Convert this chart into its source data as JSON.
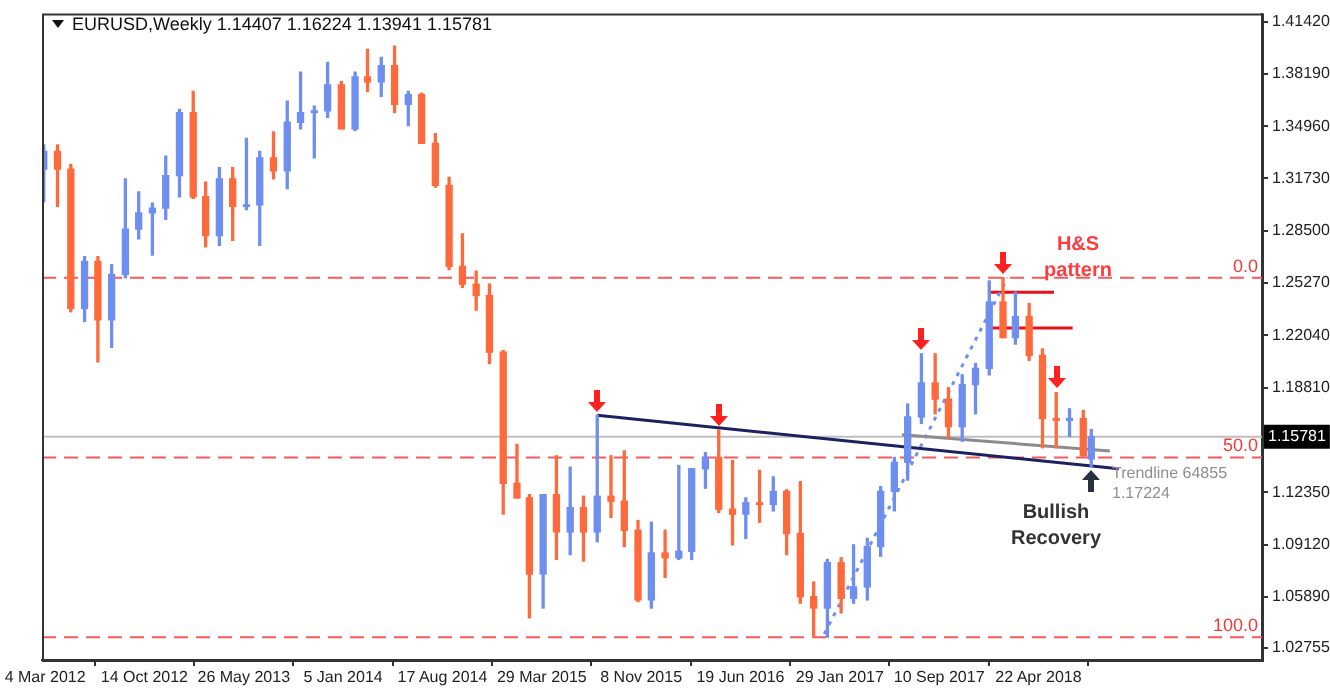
{
  "chart_data": {
    "type": "candlestick",
    "title": "EURUSD,Weekly  1.14407 1.16224 1.13941 1.15781",
    "x": [
      "2012-03-01",
      "2012-04-01",
      "2012-05-01",
      "2012-06-01",
      "2012-07-01",
      "2012-08-01",
      "2012-09-01",
      "2012-10-01",
      "2012-11-01",
      "2012-12-01",
      "2013-01-01",
      "2013-02-01",
      "2013-03-01",
      "2013-04-01",
      "2013-05-01",
      "2013-06-01",
      "2013-07-01",
      "2013-08-01",
      "2013-09-01",
      "2013-10-01",
      "2013-11-01",
      "2013-12-01",
      "2014-01-01",
      "2014-02-01",
      "2014-03-01",
      "2014-04-01",
      "2014-05-01",
      "2014-06-01",
      "2014-07-01",
      "2014-08-01",
      "2014-09-01",
      "2014-10-01",
      "2014-11-01",
      "2014-12-01",
      "2015-01-01",
      "2015-02-01",
      "2015-03-01",
      "2015-04-01",
      "2015-05-01",
      "2015-06-01",
      "2015-07-01",
      "2015-08-01",
      "2015-09-01",
      "2015-10-01",
      "2015-11-01",
      "2015-12-01",
      "2016-01-01",
      "2016-02-01",
      "2016-03-01",
      "2016-04-01",
      "2016-05-01",
      "2016-06-01",
      "2016-07-01",
      "2016-08-01",
      "2016-09-01",
      "2016-10-01",
      "2016-11-01",
      "2016-12-01",
      "2017-01-01",
      "2017-02-01",
      "2017-03-01",
      "2017-04-01",
      "2017-05-01",
      "2017-06-01",
      "2017-07-01",
      "2017-08-01",
      "2017-09-01",
      "2017-10-01",
      "2017-11-01",
      "2017-12-01",
      "2018-01-01",
      "2018-02-01",
      "2018-03-01",
      "2018-04-01",
      "2018-05-01",
      "2018-06-01",
      "2018-07-01",
      "2018-08-01",
      "2018-08-19"
    ],
    "ohlc": [
      [
        1.323,
        1.338,
        1.303,
        1.334
      ],
      [
        1.334,
        1.338,
        1.3,
        1.323
      ],
      [
        1.323,
        1.326,
        1.235,
        1.237
      ],
      [
        1.237,
        1.269,
        1.229,
        1.266
      ],
      [
        1.266,
        1.269,
        1.204,
        1.23
      ],
      [
        1.23,
        1.264,
        1.213,
        1.258
      ],
      [
        1.258,
        1.317,
        1.256,
        1.286
      ],
      [
        1.286,
        1.309,
        1.28,
        1.296
      ],
      [
        1.296,
        1.302,
        1.27,
        1.299
      ],
      [
        1.299,
        1.331,
        1.292,
        1.319
      ],
      [
        1.319,
        1.36,
        1.306,
        1.358
      ],
      [
        1.358,
        1.371,
        1.305,
        1.306
      ],
      [
        1.306,
        1.315,
        1.275,
        1.282
      ],
      [
        1.282,
        1.324,
        1.276,
        1.317
      ],
      [
        1.317,
        1.324,
        1.279,
        1.3
      ],
      [
        1.3,
        1.342,
        1.298,
        1.301
      ],
      [
        1.301,
        1.334,
        1.276,
        1.33
      ],
      [
        1.33,
        1.346,
        1.317,
        1.322
      ],
      [
        1.322,
        1.365,
        1.311,
        1.352
      ],
      [
        1.352,
        1.383,
        1.348,
        1.358
      ],
      [
        1.358,
        1.362,
        1.33,
        1.359
      ],
      [
        1.359,
        1.389,
        1.355,
        1.375
      ],
      [
        1.375,
        1.377,
        1.348,
        1.348
      ],
      [
        1.348,
        1.383,
        1.347,
        1.38
      ],
      [
        1.38,
        1.397,
        1.371,
        1.377
      ],
      [
        1.377,
        1.392,
        1.368,
        1.387
      ],
      [
        1.387,
        1.399,
        1.358,
        1.363
      ],
      [
        1.363,
        1.371,
        1.35,
        1.369
      ],
      [
        1.369,
        1.37,
        1.339,
        1.339
      ],
      [
        1.339,
        1.345,
        1.312,
        1.313
      ],
      [
        1.313,
        1.318,
        1.261,
        1.263
      ],
      [
        1.263,
        1.283,
        1.25,
        1.252
      ],
      [
        1.252,
        1.26,
        1.236,
        1.245
      ],
      [
        1.245,
        1.252,
        1.203,
        1.21
      ],
      [
        1.21,
        1.211,
        1.11,
        1.129
      ],
      [
        1.129,
        1.153,
        1.12,
        1.12
      ],
      [
        1.12,
        1.122,
        1.046,
        1.073
      ],
      [
        1.073,
        1.122,
        1.052,
        1.122
      ],
      [
        1.122,
        1.146,
        1.082,
        1.099
      ],
      [
        1.099,
        1.139,
        1.085,
        1.114
      ],
      [
        1.114,
        1.121,
        1.081,
        1.099
      ],
      [
        1.099,
        1.171,
        1.093,
        1.121
      ],
      [
        1.121,
        1.146,
        1.108,
        1.118
      ],
      [
        1.118,
        1.149,
        1.09,
        1.1
      ],
      [
        1.1,
        1.106,
        1.056,
        1.057
      ],
      [
        1.057,
        1.105,
        1.052,
        1.086
      ],
      [
        1.086,
        1.1,
        1.071,
        1.083
      ],
      [
        1.083,
        1.14,
        1.082,
        1.087
      ],
      [
        1.087,
        1.138,
        1.082,
        1.138
      ],
      [
        1.138,
        1.148,
        1.126,
        1.145
      ],
      [
        1.145,
        1.162,
        1.111,
        1.113
      ],
      [
        1.113,
        1.143,
        1.091,
        1.11
      ],
      [
        1.11,
        1.12,
        1.095,
        1.117
      ],
      [
        1.117,
        1.137,
        1.105,
        1.116
      ],
      [
        1.116,
        1.133,
        1.112,
        1.124
      ],
      [
        1.124,
        1.125,
        1.085,
        1.098
      ],
      [
        1.098,
        1.13,
        1.055,
        1.059
      ],
      [
        1.059,
        1.068,
        1.035,
        1.052
      ],
      [
        1.052,
        1.082,
        1.034,
        1.08
      ],
      [
        1.08,
        1.083,
        1.049,
        1.058
      ],
      [
        1.058,
        1.091,
        1.055,
        1.065
      ],
      [
        1.065,
        1.095,
        1.057,
        1.09
      ],
      [
        1.09,
        1.127,
        1.084,
        1.124
      ],
      [
        1.124,
        1.145,
        1.112,
        1.142
      ],
      [
        1.142,
        1.178,
        1.131,
        1.17
      ],
      [
        1.17,
        1.209,
        1.166,
        1.191
      ],
      [
        1.191,
        1.209,
        1.172,
        1.181
      ],
      [
        1.181,
        1.188,
        1.157,
        1.164
      ],
      [
        1.164,
        1.196,
        1.155,
        1.19
      ],
      [
        1.19,
        1.203,
        1.172,
        1.2
      ],
      [
        1.2,
        1.254,
        1.196,
        1.241
      ],
      [
        1.241,
        1.256,
        1.219,
        1.219
      ],
      [
        1.219,
        1.247,
        1.215,
        1.232
      ],
      [
        1.232,
        1.24,
        1.205,
        1.208
      ],
      [
        1.208,
        1.212,
        1.151,
        1.169
      ],
      [
        1.169,
        1.185,
        1.151,
        1.168
      ],
      [
        1.168,
        1.175,
        1.158,
        1.169
      ],
      [
        1.169,
        1.174,
        1.146,
        1.146
      ],
      [
        1.14407,
        1.16224,
        1.13941,
        1.15781
      ]
    ],
    "colors": [
      "#6f8ff0",
      "#ff6a3d",
      "#ff6a3d",
      "#6f8ff0",
      "#ff6a3d",
      "#6f8ff0",
      "#6f8ff0",
      "#6f8ff0",
      "#6f8ff0",
      "#6f8ff0",
      "#6f8ff0",
      "#ff6a3d",
      "#ff6a3d",
      "#6f8ff0",
      "#ff6a3d",
      "#6f8ff0",
      "#6f8ff0",
      "#ff6a3d",
      "#6f8ff0",
      "#6f8ff0",
      "#6f8ff0",
      "#6f8ff0",
      "#ff6a3d",
      "#6f8ff0",
      "#ff6a3d",
      "#6f8ff0",
      "#ff6a3d",
      "#6f8ff0",
      "#ff6a3d",
      "#ff6a3d",
      "#ff6a3d",
      "#ff6a3d",
      "#ff6a3d",
      "#ff6a3d",
      "#ff6a3d",
      "#ff6a3d",
      "#ff6a3d",
      "#6f8ff0",
      "#ff6a3d",
      "#6f8ff0",
      "#ff6a3d",
      "#6f8ff0",
      "#ff6a3d",
      "#ff6a3d",
      "#ff6a3d",
      "#6f8ff0",
      "#ff6a3d",
      "#6f8ff0",
      "#6f8ff0",
      "#6f8ff0",
      "#ff6a3d",
      "#ff6a3d",
      "#6f8ff0",
      "#ff6a3d",
      "#6f8ff0",
      "#ff6a3d",
      "#ff6a3d",
      "#ff6a3d",
      "#6f8ff0",
      "#ff6a3d",
      "#6f8ff0",
      "#6f8ff0",
      "#6f8ff0",
      "#6f8ff0",
      "#6f8ff0",
      "#6f8ff0",
      "#ff6a3d",
      "#ff6a3d",
      "#6f8ff0",
      "#6f8ff0",
      "#6f8ff0",
      "#ff6a3d",
      "#6f8ff0",
      "#ff6a3d",
      "#ff6a3d",
      "#ff6a3d",
      "#6f8ff0",
      "#ff6a3d",
      "#6f8ff0"
    ],
    "series": [
      {
        "type": "line",
        "color": "#1c2160",
        "x": [
          "2015-08-01",
          "2018-10-20"
        ],
        "values": [
          1.171,
          1.138
        ]
      },
      {
        "type": "line",
        "color": "#8c8c8c",
        "x": [
          "2017-06-18",
          "2018-09-30"
        ],
        "values": [
          1.159,
          1.149
        ]
      },
      {
        "type": "line",
        "color": "#6f8ff0",
        "line_style": "dotted",
        "x": [
          "2016-12-25",
          "2018-02-11"
        ],
        "values": [
          1.036,
          1.256
        ]
      },
      {
        "type": "line",
        "color": "#e8101a",
        "x": [
          "2017-12-31",
          "2018-05-27"
        ],
        "values": [
          1.247,
          1.247
        ]
      },
      {
        "type": "line",
        "color": "#e8101a",
        "x": [
          "2017-12-31",
          "2018-07-08"
        ],
        "values": [
          1.225,
          1.225
        ]
      }
    ],
    "xlim": [
      "2012-02-26",
      "2019-09-08"
    ],
    "xticks": [
      {
        "value": "2012-03-04",
        "label": "4 Mar 2012"
      },
      {
        "value": "2012-10-14",
        "label": "14 Oct 2012"
      },
      {
        "value": "2013-05-26",
        "label": "26 May 2013"
      },
      {
        "value": "2014-01-05",
        "label": "5 Jan 2014"
      },
      {
        "value": "2014-08-17",
        "label": "17 Aug 2014"
      },
      {
        "value": "2015-03-29",
        "label": "29 Mar 2015"
      },
      {
        "value": "2015-11-08",
        "label": "8 Nov 2015"
      },
      {
        "value": "2016-06-19",
        "label": "19 Jun 2016"
      },
      {
        "value": "2017-01-29",
        "label": "29 Jan 2017"
      },
      {
        "value": "2017-09-10",
        "label": "10 Sep 2017"
      },
      {
        "value": "2018-04-22",
        "label": "22 Apr 2018"
      }
    ],
    "ylim": [
      1.0199,
      1.4191
    ],
    "yticks": [
      {
        "value": 1.4142,
        "label": "1.41420"
      },
      {
        "value": 1.3819,
        "label": "1.38190"
      },
      {
        "value": 1.3496,
        "label": "1.34960"
      },
      {
        "value": 1.3173,
        "label": "1.31730"
      },
      {
        "value": 1.285,
        "label": "1.28500"
      },
      {
        "value": 1.2527,
        "label": "1.25270"
      },
      {
        "value": 1.2204,
        "label": "1.22040"
      },
      {
        "value": 1.1881,
        "label": "1.18810"
      },
      {
        "value": 1.1235,
        "label": "1.12350"
      },
      {
        "value": 1.0912,
        "label": "1.09120"
      },
      {
        "value": 1.0589,
        "label": "1.05890"
      },
      1.02755
    ],
    "ref_lines": [
      {
        "axis": "y",
        "value": 1.15781,
        "label": "1.15781",
        "color": "#c0c0c0"
      },
      {
        "axis": "y",
        "value": 1.256,
        "color": "#f65a5a",
        "line_style": "dashed"
      },
      {
        "axis": "y",
        "value": 1.145,
        "color": "#f65a5a",
        "line_style": "dashed"
      },
      {
        "axis": "y",
        "value": 1.034,
        "color": "#f65a5a",
        "line_style": "dashed"
      }
    ],
    "annotations": [
      "H&S pattern",
      "Bullish Recovery",
      "Trendline 64855",
      "1.17224",
      "0.0",
      "50.0",
      "100.0"
    ],
    "grid": false,
    "legend": false
  }
}
